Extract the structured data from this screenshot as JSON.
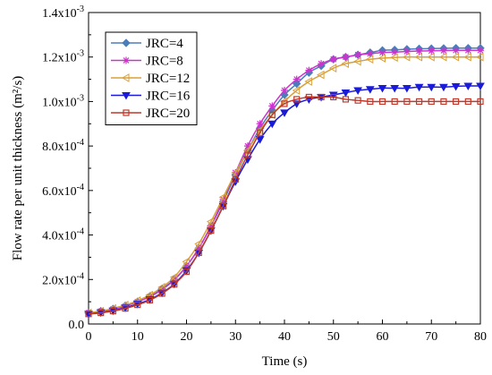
{
  "chart_data": {
    "type": "line",
    "xlabel": "Time (s)",
    "ylabel": "Flow rate per unit thickness (m²/s)",
    "xlim": [
      0,
      80
    ],
    "ylim": [
      0,
      0.0014
    ],
    "x_ticks": [
      0,
      10,
      20,
      30,
      40,
      50,
      60,
      70,
      80
    ],
    "x_tick_labels": [
      "0",
      "10",
      "20",
      "30",
      "40",
      "50",
      "60",
      "70",
      "80"
    ],
    "y_ticks": [
      0,
      0.0002,
      0.0004,
      0.0006,
      0.0008,
      0.001,
      0.0012,
      0.0014
    ],
    "y_tick_labels": [
      {
        "mant": "0.0",
        "exp": ""
      },
      {
        "mant": "2.0x10",
        "exp": "-4"
      },
      {
        "mant": "4.0x10",
        "exp": "-4"
      },
      {
        "mant": "6.0x10",
        "exp": "-4"
      },
      {
        "mant": "8.0x10",
        "exp": "-4"
      },
      {
        "mant": "1.0x10",
        "exp": "-3"
      },
      {
        "mant": "1.2x10",
        "exp": "-3"
      },
      {
        "mant": "1.4x10",
        "exp": "-3"
      }
    ],
    "grid": false,
    "legend_position": "top-left",
    "x": [
      0,
      2.5,
      5,
      7.5,
      10,
      12.5,
      15,
      17.5,
      20,
      22.5,
      25,
      27.5,
      30,
      32.5,
      35,
      37.5,
      40,
      42.5,
      45,
      47.5,
      50,
      52.5,
      55,
      57.5,
      60,
      62.5,
      65,
      67.5,
      70,
      72.5,
      75,
      77.5,
      80
    ],
    "series": [
      {
        "name": "JRC=4",
        "color": "#4a7ebb",
        "marker": "diamond",
        "values": [
          5e-05,
          5.8e-05,
          6.8e-05,
          8.2e-05,
          0.0001,
          0.000125,
          0.000158,
          0.0002,
          0.00026,
          0.00034,
          0.00044,
          0.00055,
          0.00067,
          0.00078,
          0.00088,
          0.00096,
          0.00103,
          0.00108,
          0.00113,
          0.00116,
          0.00119,
          0.0012,
          0.00121,
          0.00122,
          0.00123,
          0.001232,
          0.001235,
          0.001237,
          0.001238,
          0.001239,
          0.00124,
          0.00124,
          0.00124
        ]
      },
      {
        "name": "JRC=8",
        "color": "#cc33cc",
        "marker": "star",
        "values": [
          5e-05,
          5.7e-05,
          6.6e-05,
          8e-05,
          0.0001,
          0.000122,
          0.000155,
          0.000198,
          0.00026,
          0.00034,
          0.00044,
          0.00056,
          0.00068,
          0.0008,
          0.0009,
          0.00098,
          0.00105,
          0.0011,
          0.00114,
          0.00117,
          0.00119,
          0.0012,
          0.00121,
          0.001215,
          0.00122,
          0.001222,
          0.001225,
          0.001227,
          0.001228,
          0.001229,
          0.00123,
          0.00123,
          0.00123
        ]
      },
      {
        "name": "JRC=12",
        "color": "#d9a03a",
        "marker": "triangle-left",
        "values": [
          5e-05,
          5.8e-05,
          7e-05,
          8.5e-05,
          0.000105,
          0.00013,
          0.000165,
          0.00021,
          0.00028,
          0.00036,
          0.00046,
          0.00057,
          0.00068,
          0.00078,
          0.00087,
          0.00094,
          0.001,
          0.00105,
          0.00109,
          0.00112,
          0.00115,
          0.00117,
          0.00118,
          0.00119,
          0.001195,
          0.001198,
          0.0012,
          0.0012,
          0.0012,
          0.0012,
          0.0012,
          0.0012,
          0.0012
        ]
      },
      {
        "name": "JRC=16",
        "color": "#1a1ad9",
        "marker": "triangle-down",
        "values": [
          4.5e-05,
          5.2e-05,
          6e-05,
          7.3e-05,
          9e-05,
          0.00011,
          0.00014,
          0.00018,
          0.00024,
          0.00032,
          0.00042,
          0.00053,
          0.00064,
          0.00074,
          0.00083,
          0.0009,
          0.00095,
          0.00099,
          0.00101,
          0.00102,
          0.00103,
          0.00104,
          0.00105,
          0.001055,
          0.00106,
          0.00106,
          0.00106,
          0.001065,
          0.001065,
          0.001065,
          0.001068,
          0.00107,
          0.00107
        ]
      },
      {
        "name": "JRC=20",
        "color": "#c0392b",
        "marker": "square",
        "values": [
          4.5e-05,
          5e-05,
          5.8e-05,
          7e-05,
          8.6e-05,
          0.000107,
          0.000137,
          0.000178,
          0.000235,
          0.00032,
          0.00042,
          0.00053,
          0.00065,
          0.00076,
          0.00086,
          0.00094,
          0.00099,
          0.00101,
          0.00102,
          0.00102,
          0.00102,
          0.00101,
          0.001005,
          0.001,
          0.001,
          0.001,
          0.001,
          0.001,
          0.001,
          0.001,
          0.001,
          0.001,
          0.001
        ]
      }
    ]
  }
}
